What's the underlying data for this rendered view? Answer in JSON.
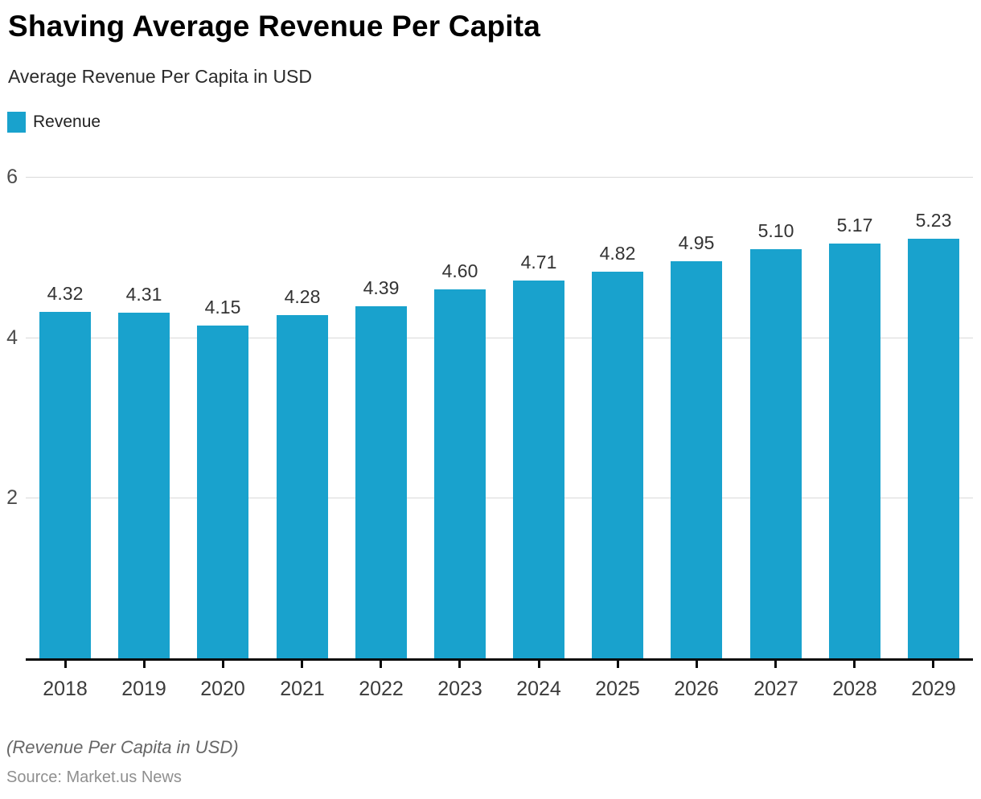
{
  "header": {
    "title": "Shaving Average Revenue Per Capita",
    "subtitle": "Average Revenue Per Capita in USD"
  },
  "legend": {
    "label": "Revenue",
    "color": "#19a2cd"
  },
  "chart_data": {
    "type": "bar",
    "title": "Shaving Average Revenue Per Capita",
    "subtitle": "Average Revenue Per Capita in USD",
    "categories": [
      "2018",
      "2019",
      "2020",
      "2021",
      "2022",
      "2023",
      "2024",
      "2025",
      "2026",
      "2027",
      "2028",
      "2029"
    ],
    "series": [
      {
        "name": "Revenue",
        "values": [
          4.32,
          4.31,
          4.15,
          4.28,
          4.39,
          4.6,
          4.71,
          4.82,
          4.95,
          5.1,
          5.17,
          5.23
        ]
      }
    ],
    "xlabel": "",
    "ylabel": "",
    "ylim": [
      0,
      6
    ],
    "yticks": [
      2,
      4,
      6
    ],
    "grid": true,
    "legend_position": "top-left",
    "data_labels": true,
    "bar_color": "#19a2cd",
    "gridline_color": "#d9d9d9",
    "axis_color": "#0a0a0a"
  },
  "footer": {
    "note": "(Revenue Per Capita in USD)",
    "source": "Source: Market.us News"
  }
}
